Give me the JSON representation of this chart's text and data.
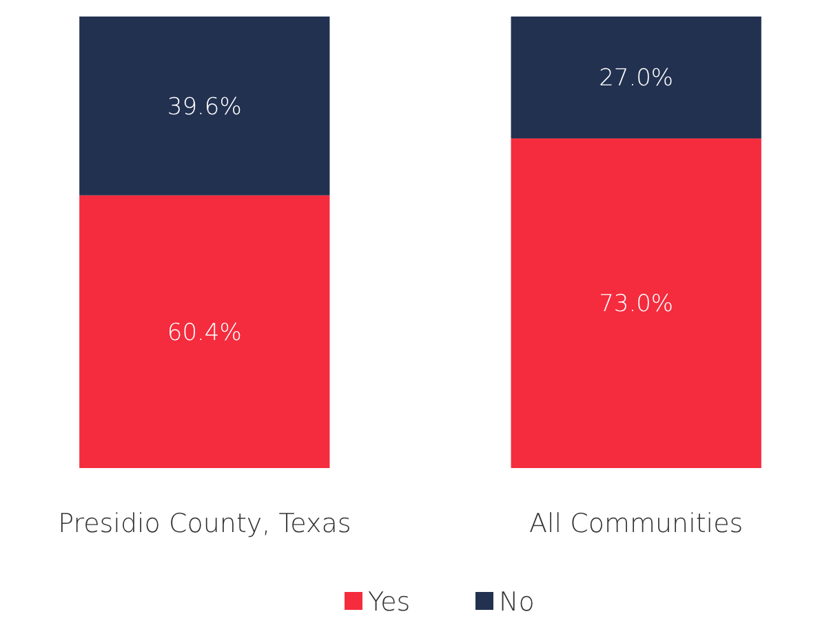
{
  "chart_data": {
    "type": "bar",
    "stacked": true,
    "categories": [
      "Presidio County, Texas",
      "All Communities"
    ],
    "series": [
      {
        "name": "Yes",
        "color": "#f42c3d",
        "values": [
          60.4,
          73.0
        ],
        "value_labels": [
          "60.4%",
          "73.0%"
        ]
      },
      {
        "name": "No",
        "color": "#233150",
        "values": [
          39.6,
          27.0
        ],
        "value_labels": [
          "39.6%",
          "27.0%"
        ]
      }
    ],
    "ylim": [
      0,
      100
    ],
    "tick_labels": "x",
    "legend": "bottom"
  }
}
